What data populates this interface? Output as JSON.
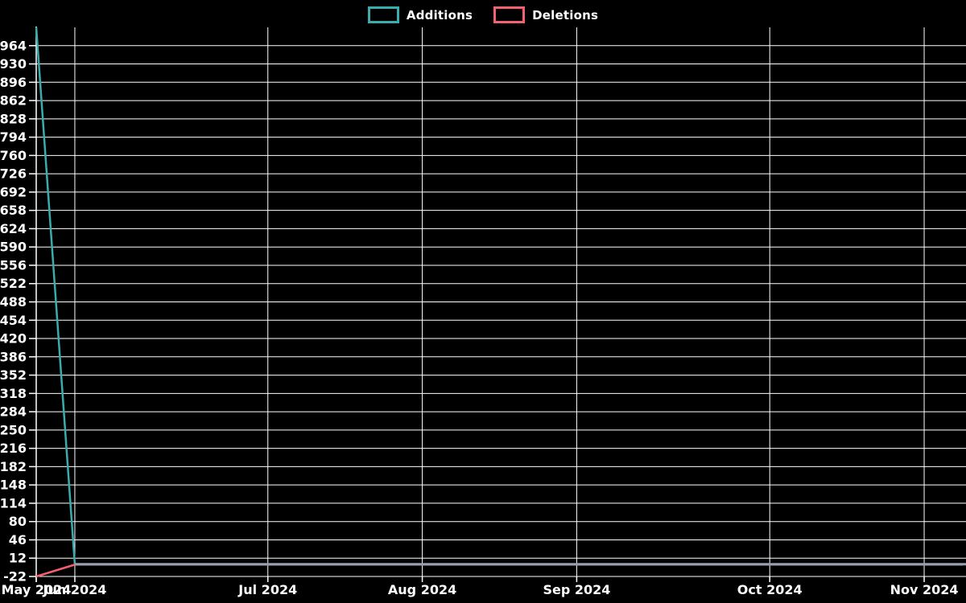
{
  "chart_data": {
    "type": "line",
    "title": "",
    "legend_position": "top-center",
    "grid": true,
    "background": "#000000",
    "grid_color": "#ffffff",
    "text_color": "#ffffff",
    "series_overlap_color": "#8fa3b0",
    "x_axis": {
      "tick_labels": [
        "May 2024",
        "Jun 2024",
        "Jul 2024",
        "Aug 2024",
        "Sep 2024",
        "Oct 2024",
        "Nov 2024"
      ],
      "tick_point_indices": [
        0,
        1,
        6,
        10,
        14,
        19,
        23
      ],
      "unit": "weekly data points"
    },
    "n_points": 25,
    "ylim": [
      -22,
      998
    ],
    "y_ticks": [
      -22,
      12,
      46,
      80,
      114,
      148,
      182,
      216,
      250,
      284,
      318,
      352,
      386,
      420,
      454,
      488,
      522,
      556,
      590,
      624,
      658,
      692,
      726,
      760,
      794,
      828,
      862,
      896,
      930,
      964
    ],
    "series": [
      {
        "name": "Additions",
        "color": "#3aacae",
        "values": [
          998,
          0,
          0,
          0,
          0,
          0,
          0,
          0,
          0,
          0,
          0,
          0,
          0,
          0,
          0,
          0,
          0,
          0,
          0,
          0,
          0,
          0,
          0,
          0,
          0
        ]
      },
      {
        "name": "Deletions",
        "color": "#f4606e",
        "values": [
          -22,
          0,
          0,
          0,
          0,
          0,
          0,
          0,
          0,
          0,
          0,
          0,
          0,
          0,
          0,
          0,
          0,
          0,
          0,
          0,
          0,
          0,
          0,
          0,
          0
        ]
      }
    ]
  }
}
